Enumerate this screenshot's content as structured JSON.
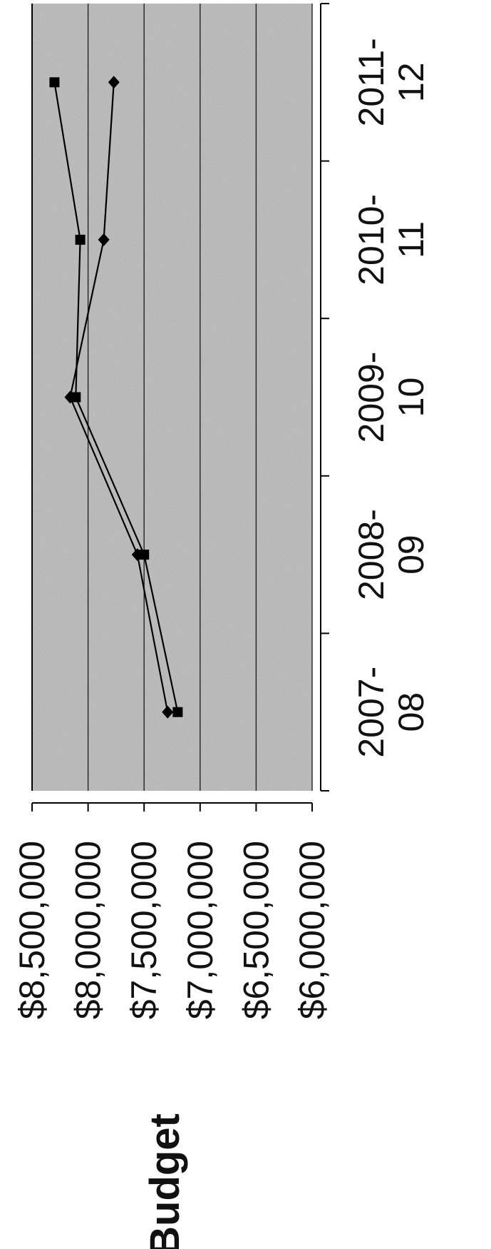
{
  "chart_data": {
    "type": "line",
    "ylabel": "Budget",
    "xlabel": "",
    "title": "",
    "categories": [
      "2007-08",
      "2008-09",
      "2009-10",
      "2010-11",
      "2011-12"
    ],
    "category_lines": [
      [
        "2007-",
        "08"
      ],
      [
        "2008-",
        "09"
      ],
      [
        "2009-",
        "10"
      ],
      [
        "2010-",
        "11"
      ],
      [
        "2011-",
        "12"
      ]
    ],
    "ylim": [
      6000000,
      8500000
    ],
    "yticks": [
      6000000,
      6500000,
      7000000,
      7500000,
      8000000,
      8500000
    ],
    "ytick_labels": [
      "$6,000,000",
      "$6,500,000",
      "$7,000,000",
      "$7,500,000",
      "$8,000,000",
      "$8,500,000"
    ],
    "grid": true,
    "rotation": "chart rotated 90 degrees clockwise",
    "series": [
      {
        "marker": "diamond",
        "values": [
          7290000,
          7560000,
          8160000,
          7860000,
          7770000
        ]
      },
      {
        "marker": "square",
        "values": [
          7200000,
          7500000,
          8110000,
          8070000,
          8300000
        ]
      }
    ]
  },
  "colors": {
    "plot_bg": "#b9b9b9",
    "line": "#000000",
    "grid": "#222222"
  }
}
